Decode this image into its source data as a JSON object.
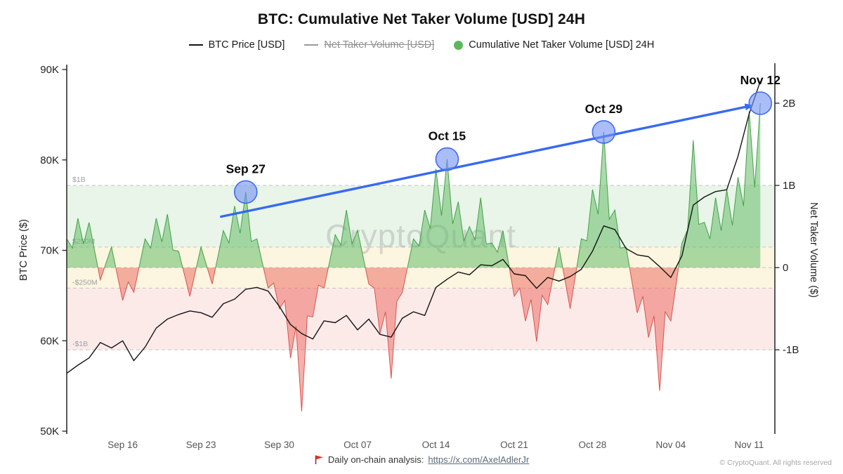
{
  "page": {
    "title": "BTC: Cumulative Net Taker Volume [USD] 24H",
    "watermark": "CryptoQuant",
    "footer": {
      "flag_icon": "red-pennant-flag",
      "text": "Daily on-chain analysis:",
      "link": "https://x.com/AxelAdlerJr"
    },
    "copyright": "© CryptoQuant. All rights reserved"
  },
  "legend": {
    "items": [
      {
        "label": "BTC Price [USD]",
        "swatch": "line",
        "color": "#141414",
        "strikethrough": false
      },
      {
        "label": "Net Taker Volume [USD]",
        "swatch": "line",
        "color": "#9a9a9a",
        "strikethrough": true
      },
      {
        "label": "Cumulative Net Taker Volume [USD] 24H",
        "swatch": "circle",
        "color": "#5cb85c",
        "strikethrough": false
      }
    ]
  },
  "chart_data": {
    "type": "line+area",
    "title": "BTC: Cumulative Net Taker Volume [USD] 24H",
    "x_dates": [
      "Sep 11",
      "Sep 12",
      "Sep 13",
      "Sep 14",
      "Sep 15",
      "Sep 16",
      "Sep 17",
      "Sep 18",
      "Sep 19",
      "Sep 20",
      "Sep 21",
      "Sep 22",
      "Sep 23",
      "Sep 24",
      "Sep 25",
      "Sep 26",
      "Sep 27",
      "Sep 28",
      "Sep 29",
      "Sep 30",
      "Oct 01",
      "Oct 02",
      "Oct 03",
      "Oct 04",
      "Oct 05",
      "Oct 06",
      "Oct 07",
      "Oct 08",
      "Oct 09",
      "Oct 10",
      "Oct 11",
      "Oct 12",
      "Oct 13",
      "Oct 14",
      "Oct 15",
      "Oct 16",
      "Oct 17",
      "Oct 18",
      "Oct 19",
      "Oct 20",
      "Oct 21",
      "Oct 22",
      "Oct 23",
      "Oct 24",
      "Oct 25",
      "Oct 26",
      "Oct 27",
      "Oct 28",
      "Oct 29",
      "Oct 30",
      "Oct 31",
      "Nov 01",
      "Nov 02",
      "Nov 03",
      "Nov 04",
      "Nov 05",
      "Nov 06",
      "Nov 07",
      "Nov 08",
      "Nov 09",
      "Nov 10",
      "Nov 11",
      "Nov 12"
    ],
    "series": [
      {
        "name": "BTC Price [USD]",
        "axis": "left",
        "unit": "K USD",
        "values_k": [
          56.4,
          57.3,
          58.1,
          59.8,
          59.2,
          60.0,
          57.8,
          59.3,
          61.4,
          62.4,
          62.9,
          63.3,
          63.1,
          62.6,
          64.1,
          64.6,
          65.7,
          65.9,
          65.5,
          63.8,
          61.8,
          60.8,
          60.2,
          62.2,
          62.0,
          62.8,
          61.2,
          62.4,
          60.7,
          60.4,
          62.5,
          63.2,
          62.8,
          65.9,
          66.8,
          67.6,
          67.3,
          68.4,
          68.3,
          69.0,
          67.4,
          67.2,
          65.8,
          67.0,
          66.6,
          67.1,
          67.9,
          69.9,
          72.7,
          72.3,
          70.2,
          69.5,
          69.3,
          68.2,
          67.0,
          69.4,
          75.0,
          75.9,
          76.5,
          76.7,
          80.4,
          85.1,
          88.7
        ]
      },
      {
        "name": "Cumulative Net Taker Volume [USD] 24H",
        "axis": "right",
        "unit": "B USD",
        "values_B": [
          0.35,
          0.6,
          0.55,
          -0.15,
          0.25,
          -0.4,
          -0.3,
          0.35,
          0.6,
          0.65,
          0.2,
          -0.35,
          0.25,
          -0.2,
          0.45,
          0.75,
          0.92,
          0.35,
          -0.25,
          -0.5,
          -1.1,
          -1.75,
          -0.6,
          -0.25,
          0.4,
          0.7,
          0.45,
          -0.2,
          -0.8,
          -1.35,
          -0.3,
          0.35,
          0.7,
          1.2,
          1.32,
          0.8,
          0.5,
          0.85,
          0.3,
          0.45,
          -0.35,
          -0.65,
          -0.9,
          -0.45,
          0.25,
          -0.5,
          0.35,
          0.95,
          1.65,
          0.7,
          0.25,
          -0.55,
          -0.85,
          -1.5,
          -0.65,
          0.3,
          1.55,
          0.55,
          0.85,
          0.95,
          1.1,
          1.9,
          2.0
        ]
      }
    ],
    "left_axis": {
      "label": "BTC Price ($)",
      "ticks": [
        "90K",
        "80K",
        "70K",
        "60K",
        "50K"
      ],
      "tick_values_k": [
        90,
        80,
        70,
        60,
        50
      ],
      "ylim_k": [
        50,
        90
      ]
    },
    "right_axis": {
      "label": "Net Taker Volume ($)",
      "ticks": [
        "2B",
        "1B",
        "0",
        "-1B"
      ],
      "tick_values_B": [
        2,
        1,
        0,
        -1
      ],
      "ylim_B": [
        -1.99,
        2.41
      ]
    },
    "x_axis": {
      "tick_labels": [
        "Sep 16",
        "Sep 23",
        "Sep 30",
        "Oct 07",
        "Oct 14",
        "Oct 21",
        "Oct 28",
        "Nov 04",
        "Nov 11"
      ],
      "tick_indices": [
        5,
        12,
        19,
        26,
        33,
        40,
        47,
        54,
        61
      ]
    },
    "bands": [
      {
        "from_B": 0.25,
        "to_B": 1,
        "color": "rgba(76,175,80,0.13)"
      },
      {
        "from_B": -0.25,
        "to_B": 0.25,
        "color": "rgba(240,200,80,0.18)"
      },
      {
        "from_B": -1,
        "to_B": -0.25,
        "color": "rgba(229,83,75,0.12)"
      }
    ],
    "guide_lines_B": [
      {
        "v": 1,
        "label": "$1B"
      },
      {
        "v": 0.25,
        "label": "$250M"
      },
      {
        "v": 0,
        "label": ""
      },
      {
        "v": -0.25,
        "label": "-$250M"
      },
      {
        "v": -1,
        "label": "-$1B"
      }
    ],
    "annotations": [
      {
        "label": "Sep 27",
        "x_index": 16,
        "value_B": 0.92
      },
      {
        "label": "Oct 15",
        "x_index": 34,
        "value_B": 1.32
      },
      {
        "label": "Oct 29",
        "x_index": 48,
        "value_B": 1.65
      },
      {
        "label": "Nov 12",
        "x_index": 62,
        "value_B": 2.0
      }
    ],
    "trend_arrow": {
      "from": {
        "x_index": 13.8,
        "value_B": 0.62
      },
      "to": {
        "x_index": 61.2,
        "value_B": 1.97
      },
      "color": "#2e63f0"
    },
    "colors": {
      "price_line": "#141414",
      "pos_area_fill": "rgba(102,187,106,0.55)",
      "pos_area_stroke": "#43a047",
      "neg_area_fill": "rgba(235,100,92,0.5)",
      "neg_area_stroke": "#d9534f",
      "annotation_circle_fill": "rgba(115,145,245,0.6)",
      "annotation_circle_stroke": "#3e6af0",
      "guide_line": "#c4c4c4",
      "band_label": "#9ba1a6",
      "axis": "#222222",
      "watermark": "#8a8a8a"
    }
  }
}
